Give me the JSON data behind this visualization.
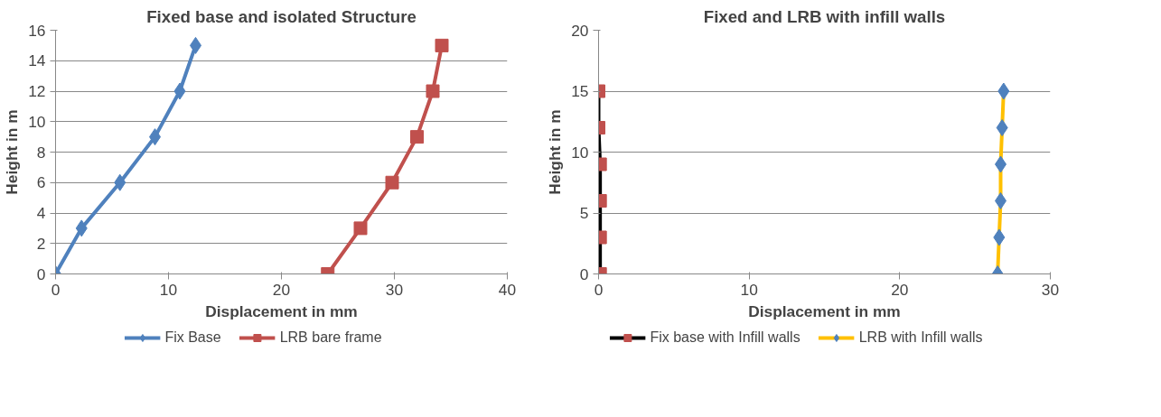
{
  "chart_data": [
    {
      "type": "line",
      "title": "Fixed base and isolated Structure",
      "xlabel": "Displacement in mm",
      "ylabel": "Height in m",
      "xlim": [
        0,
        40
      ],
      "xticks": [
        0,
        10,
        20,
        30,
        40
      ],
      "ylim": [
        0,
        16
      ],
      "yticks": [
        0,
        2,
        4,
        6,
        8,
        10,
        12,
        14,
        16
      ],
      "grid": "y",
      "legend": "bottom",
      "series": [
        {
          "name": "Fix Base",
          "color": "#4f81bd",
          "marker": "diamond",
          "x": [
            0,
            2.3,
            5.7,
            8.8,
            11.0,
            12.4
          ],
          "values": [
            0,
            3,
            6,
            9,
            12,
            15
          ]
        },
        {
          "name": "LRB bare frame",
          "color": "#c0504d",
          "marker": "square",
          "x": [
            24.1,
            27.0,
            29.8,
            32.0,
            33.4,
            34.2
          ],
          "values": [
            0,
            3,
            6,
            9,
            12,
            15
          ]
        }
      ]
    },
    {
      "type": "line",
      "title": "Fixed and LRB with infill walls",
      "xlabel": "Displacement in mm",
      "ylabel": "Height in m",
      "xlim": [
        0,
        30
      ],
      "xticks": [
        0,
        10,
        20,
        30
      ],
      "ylim": [
        0,
        20
      ],
      "yticks": [
        0,
        5,
        10,
        15,
        20
      ],
      "grid": "y",
      "legend": "bottom",
      "series": [
        {
          "name": "Fix base with Infill walls",
          "color": "#000000",
          "marker": "square",
          "colors": [
            "#c0504d",
            "#c0504d",
            "#c0504d",
            "#c0504d",
            "#c0504d",
            "#c0504d"
          ],
          "x": [
            0.1,
            0.1,
            0.1,
            0.1,
            0,
            0
          ],
          "values": [
            0,
            3,
            6,
            9,
            12,
            15
          ]
        },
        {
          "name": "LRB with Infill walls",
          "color": "#ffc000",
          "marker": "diamond",
          "colors": [
            "#4f81bd",
            "#4f81bd",
            "#4f81bd",
            "#4f81bd",
            "#4f81bd",
            "#4f81bd"
          ],
          "x": [
            26.5,
            26.6,
            26.7,
            26.7,
            26.8,
            26.9
          ],
          "values": [
            0,
            3,
            6,
            9,
            12,
            15
          ]
        }
      ]
    }
  ]
}
